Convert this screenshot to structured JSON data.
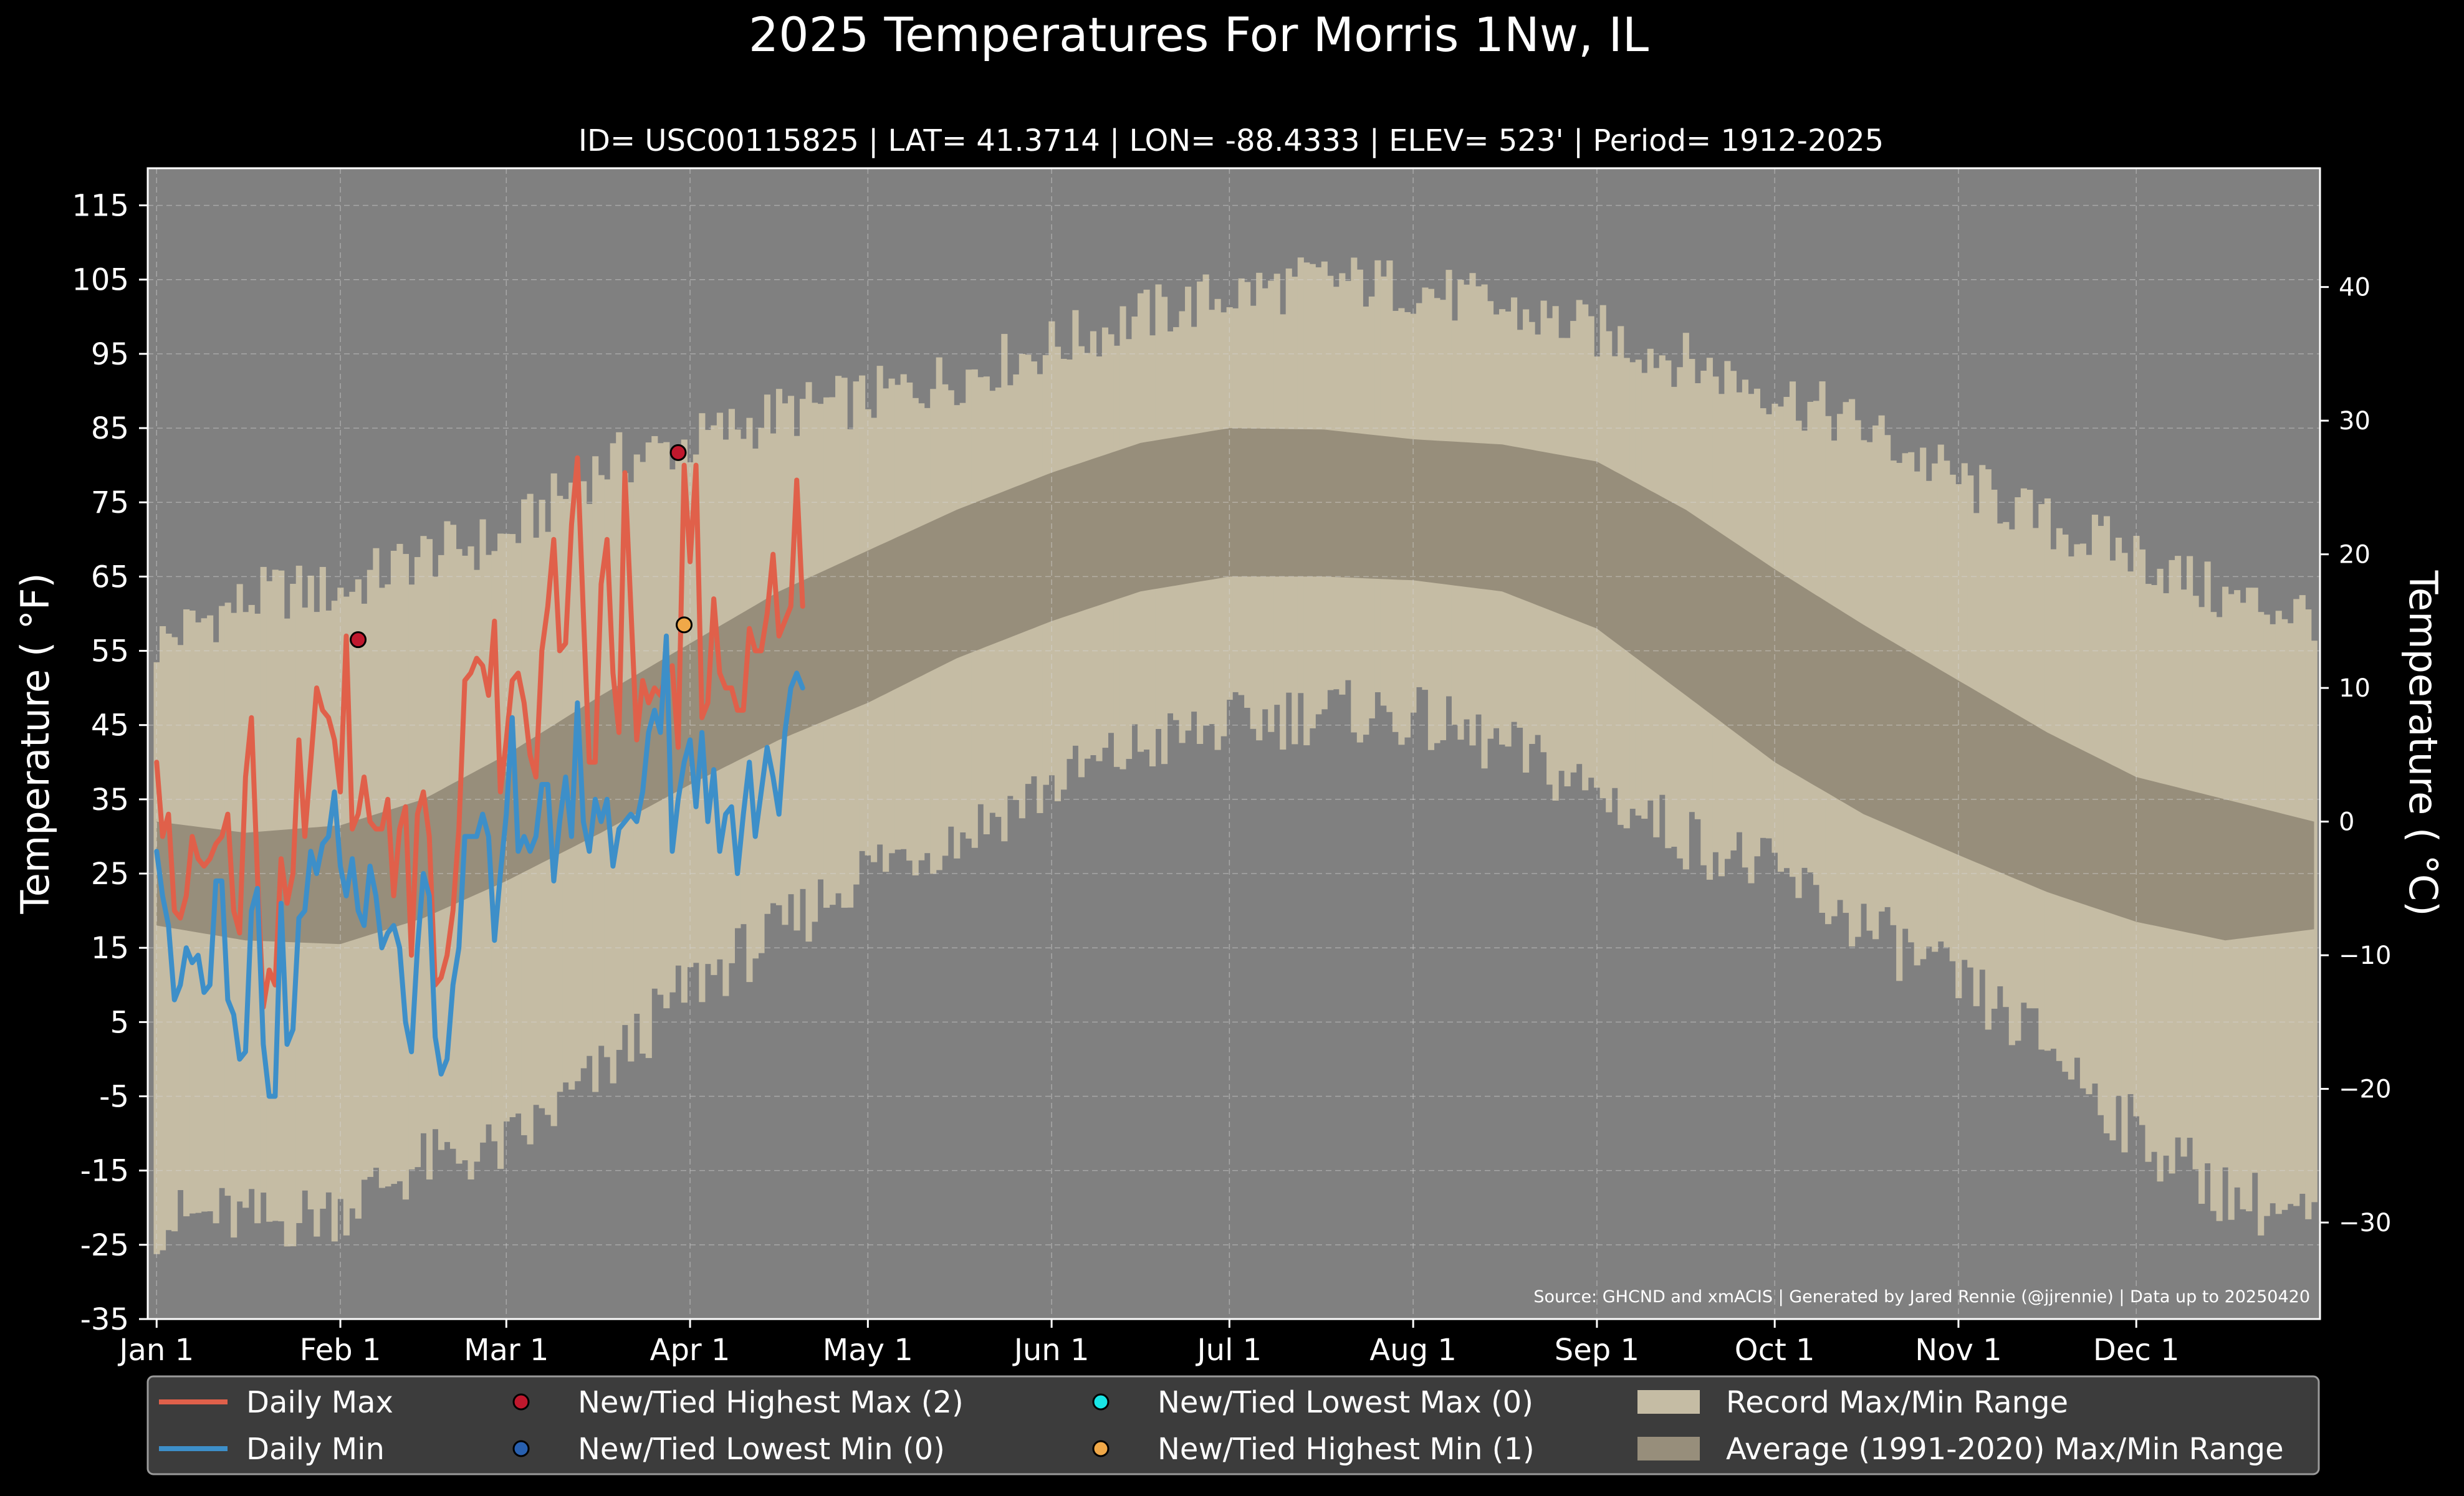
{
  "chart_data": {
    "type": "area",
    "title": "2025 Temperatures For Morris 1Nw, IL",
    "subtitle": "ID= USC00115825 | LAT= 41.3714 | LON= -88.4333 | ELEV= 523' | Period= 1912-2025",
    "ylabel": "Temperature ( °F)",
    "ylabel_right": "Temperature ( °C)",
    "source": "Source: GHCND and xmACIS | Generated by Jared Rennie (@jjrennie) | Data up to 20250420",
    "ylim": [
      -35,
      120
    ],
    "xlim": [
      -1.5,
      365
    ],
    "grid": true,
    "legend_position": "bottom",
    "y_ticks": [
      115,
      105,
      95,
      85,
      75,
      65,
      55,
      45,
      35,
      25,
      15,
      5,
      -5,
      -15,
      -25,
      -35
    ],
    "y_tick_labels": [
      "115",
      "105",
      "95",
      "85",
      "75",
      "65",
      "55",
      "45",
      "35",
      "25",
      "15",
      "5",
      "-5",
      "-15",
      "-25",
      "-35"
    ],
    "y2_ticks": [
      40,
      30,
      20,
      10,
      0,
      -10,
      -20,
      -30
    ],
    "y2_tick_labels": [
      "40",
      "30",
      "20",
      "10",
      "0",
      "−10",
      "−20",
      "−30"
    ],
    "x_ticks": [
      {
        "label": "Jan 1",
        "day": 0
      },
      {
        "label": "Feb 1",
        "day": 31
      },
      {
        "label": "Mar 1",
        "day": 59
      },
      {
        "label": "Apr 1",
        "day": 90
      },
      {
        "label": "May 1",
        "day": 120
      },
      {
        "label": "Jun 1",
        "day": 151
      },
      {
        "label": "Jul 1",
        "day": 181
      },
      {
        "label": "Aug 1",
        "day": 212
      },
      {
        "label": "Sep 1",
        "day": 243
      },
      {
        "label": "Oct 1",
        "day": 273
      },
      {
        "label": "Nov 1",
        "day": 304
      },
      {
        "label": "Dec 1",
        "day": 334
      }
    ],
    "record_max_anchors": [
      [
        0,
        56
      ],
      [
        10,
        60
      ],
      [
        20,
        63
      ],
      [
        31,
        63
      ],
      [
        45,
        68
      ],
      [
        59,
        70
      ],
      [
        75,
        80
      ],
      [
        90,
        83
      ],
      [
        105,
        87
      ],
      [
        120,
        89
      ],
      [
        135,
        92
      ],
      [
        151,
        96
      ],
      [
        166,
        100
      ],
      [
        181,
        103
      ],
      [
        197,
        105
      ],
      [
        212,
        104
      ],
      [
        227,
        101
      ],
      [
        243,
        98
      ],
      [
        258,
        94
      ],
      [
        273,
        90
      ],
      [
        288,
        85
      ],
      [
        304,
        78
      ],
      [
        319,
        72
      ],
      [
        334,
        68
      ],
      [
        349,
        62
      ],
      [
        364,
        60
      ]
    ],
    "record_min_anchors": [
      [
        0,
        -22
      ],
      [
        10,
        -21
      ],
      [
        20,
        -22
      ],
      [
        31,
        -20
      ],
      [
        45,
        -14
      ],
      [
        59,
        -12
      ],
      [
        75,
        -2
      ],
      [
        90,
        10
      ],
      [
        105,
        17
      ],
      [
        120,
        26
      ],
      [
        135,
        30
      ],
      [
        151,
        37
      ],
      [
        166,
        42
      ],
      [
        181,
        45
      ],
      [
        197,
        47
      ],
      [
        212,
        46
      ],
      [
        227,
        42
      ],
      [
        243,
        36
      ],
      [
        258,
        30
      ],
      [
        273,
        25
      ],
      [
        288,
        18
      ],
      [
        304,
        10
      ],
      [
        319,
        2
      ],
      [
        334,
        -10
      ],
      [
        349,
        -18
      ],
      [
        364,
        -22
      ]
    ],
    "avg_max_anchors": [
      [
        0,
        32
      ],
      [
        15,
        30.5
      ],
      [
        31,
        31.5
      ],
      [
        45,
        35
      ],
      [
        59,
        41
      ],
      [
        75,
        49
      ],
      [
        90,
        56
      ],
      [
        105,
        63
      ],
      [
        120,
        68.5
      ],
      [
        135,
        74
      ],
      [
        151,
        79
      ],
      [
        166,
        83
      ],
      [
        181,
        85
      ],
      [
        197,
        84.8
      ],
      [
        212,
        83.5
      ],
      [
        227,
        82.8
      ],
      [
        243,
        80.5
      ],
      [
        258,
        74
      ],
      [
        273,
        66
      ],
      [
        288,
        58.5
      ],
      [
        304,
        51
      ],
      [
        319,
        44
      ],
      [
        334,
        38
      ],
      [
        349,
        35
      ],
      [
        364,
        32
      ]
    ],
    "avg_min_anchors": [
      [
        0,
        18
      ],
      [
        15,
        16
      ],
      [
        31,
        15.5
      ],
      [
        45,
        19
      ],
      [
        59,
        24
      ],
      [
        75,
        30.5
      ],
      [
        90,
        37
      ],
      [
        105,
        43
      ],
      [
        120,
        48
      ],
      [
        135,
        54
      ],
      [
        151,
        59
      ],
      [
        166,
        63
      ],
      [
        181,
        65
      ],
      [
        197,
        65
      ],
      [
        212,
        64.5
      ],
      [
        227,
        63
      ],
      [
        243,
        58
      ],
      [
        258,
        49
      ],
      [
        273,
        40
      ],
      [
        288,
        33
      ],
      [
        304,
        27.5
      ],
      [
        319,
        22.5
      ],
      [
        334,
        18.5
      ],
      [
        349,
        16
      ],
      [
        364,
        17.5
      ]
    ],
    "series": [
      {
        "name": "Daily Max",
        "color": "#e0604a",
        "x": [
          0,
          1,
          2,
          3,
          4,
          5,
          6,
          7,
          8,
          9,
          10,
          11,
          12,
          13,
          14,
          15,
          16,
          17,
          18,
          19,
          20,
          21,
          22,
          23,
          24,
          25,
          26,
          27,
          28,
          29,
          30,
          31,
          32,
          33,
          34,
          35,
          36,
          37,
          38,
          39,
          40,
          41,
          42,
          43,
          44,
          45,
          46,
          47,
          48,
          49,
          50,
          51,
          52,
          53,
          54,
          55,
          56,
          57,
          58,
          59,
          60,
          61,
          62,
          63,
          64,
          65,
          66,
          67,
          68,
          69,
          70,
          71,
          72,
          73,
          74,
          75,
          76,
          77,
          78,
          79,
          80,
          81,
          82,
          83,
          84,
          85,
          86,
          87,
          88,
          89,
          90,
          91,
          92,
          93,
          94,
          95,
          96,
          97,
          98,
          99,
          100,
          101,
          102,
          103,
          104,
          105,
          106,
          107,
          108,
          109
        ],
        "values": [
          40,
          30,
          33,
          20,
          19,
          22,
          30,
          27,
          26,
          27,
          29,
          30,
          33,
          20,
          17,
          38,
          46,
          25,
          7,
          12,
          10,
          27,
          21,
          25,
          43,
          30,
          40,
          50,
          47,
          46,
          43,
          36,
          57,
          31,
          33,
          38,
          32,
          31,
          31,
          35,
          22,
          31,
          34,
          14,
          33,
          36,
          30,
          10,
          11,
          14,
          20,
          31,
          51,
          52,
          54,
          53,
          49,
          59,
          36,
          43,
          51,
          52,
          48,
          41,
          38,
          55,
          61,
          70,
          55,
          56,
          72,
          81,
          60,
          40,
          40,
          64,
          70,
          52,
          44,
          79,
          61,
          43,
          51,
          48,
          50,
          49,
          52,
          53,
          42,
          80,
          67,
          80,
          46,
          48,
          62,
          52,
          50,
          50,
          47,
          47,
          58,
          55,
          55,
          60,
          68,
          57,
          59,
          61,
          78,
          61
        ]
      },
      {
        "name": "Daily Min",
        "color": "#3d8fc9",
        "x": [
          0,
          1,
          2,
          3,
          4,
          5,
          6,
          7,
          8,
          9,
          10,
          11,
          12,
          13,
          14,
          15,
          16,
          17,
          18,
          19,
          20,
          21,
          22,
          23,
          24,
          25,
          26,
          27,
          28,
          29,
          30,
          31,
          32,
          33,
          34,
          35,
          36,
          37,
          38,
          39,
          40,
          41,
          42,
          43,
          44,
          45,
          46,
          47,
          48,
          49,
          50,
          51,
          52,
          53,
          54,
          55,
          56,
          57,
          58,
          59,
          60,
          61,
          62,
          63,
          64,
          65,
          66,
          67,
          68,
          69,
          70,
          71,
          72,
          73,
          74,
          75,
          76,
          77,
          78,
          79,
          80,
          81,
          82,
          83,
          84,
          85,
          86,
          87,
          88,
          89,
          90,
          91,
          92,
          93,
          94,
          95,
          96,
          97,
          98,
          99,
          100,
          101,
          102,
          103,
          104,
          105,
          106,
          107,
          108,
          109
        ],
        "values": [
          28,
          22,
          18,
          8,
          10,
          15,
          13,
          14,
          9,
          10,
          24,
          24,
          8,
          6,
          0,
          1,
          20,
          23,
          2,
          -5,
          -5,
          21,
          2,
          4,
          19,
          20,
          28,
          25,
          29,
          30,
          36,
          26,
          22,
          27,
          20,
          18,
          26,
          22,
          15,
          17,
          18,
          15,
          5,
          1,
          15,
          25,
          22,
          3,
          -2,
          0,
          10,
          15,
          30,
          30,
          30,
          33,
          30,
          16,
          25,
          33,
          46,
          28,
          30,
          28,
          30,
          37,
          37,
          24,
          32,
          38,
          30,
          48,
          32,
          28,
          35,
          32,
          35,
          26,
          31,
          32,
          33,
          32,
          36,
          44,
          47,
          44,
          57,
          28,
          35,
          40,
          43,
          34,
          44,
          32,
          39,
          28,
          33,
          34,
          25,
          33,
          40,
          30,
          36,
          42,
          38,
          33,
          44,
          50,
          52,
          50
        ]
      }
    ],
    "record_points": [
      {
        "label": "New/Tied Highest Max (2)",
        "color": "#c0182d",
        "points": [
          [
            34,
            56.5
          ],
          [
            88,
            81.7
          ]
        ]
      },
      {
        "label": "New/Tied Lowest Min (0)",
        "color": "#2860b0",
        "points": []
      },
      {
        "label": "New/Tied Lowest Max (0)",
        "color": "#19e6e6",
        "points": []
      },
      {
        "label": "New/Tied Highest Min (1)",
        "color": "#f0a848",
        "points": [
          [
            89,
            58.5
          ]
        ]
      }
    ],
    "ranges": [
      {
        "label": "Record Max/Min Range",
        "color": "#c5bca4"
      },
      {
        "label": "Average (1991-2020) Max/Min Range",
        "color": "#978e7b"
      }
    ],
    "legend": [
      {
        "kind": "line",
        "label": "Daily Max",
        "color": "#e0604a"
      },
      {
        "kind": "line",
        "label": "Daily Min",
        "color": "#3d8fc9"
      },
      {
        "kind": "dot",
        "label": "New/Tied Highest Max (2)",
        "color": "#c0182d"
      },
      {
        "kind": "dot",
        "label": "New/Tied Lowest Min (0)",
        "color": "#2860b0"
      },
      {
        "kind": "dot",
        "label": "New/Tied Lowest Max (0)",
        "color": "#19e6e6"
      },
      {
        "kind": "dot",
        "label": "New/Tied Highest Min (1)",
        "color": "#f0a848"
      },
      {
        "kind": "patch",
        "label": "Record Max/Min Range",
        "color": "#c5bca4"
      },
      {
        "kind": "patch",
        "label": "Average (1991-2020) Max/Min Range",
        "color": "#978e7b"
      }
    ]
  }
}
